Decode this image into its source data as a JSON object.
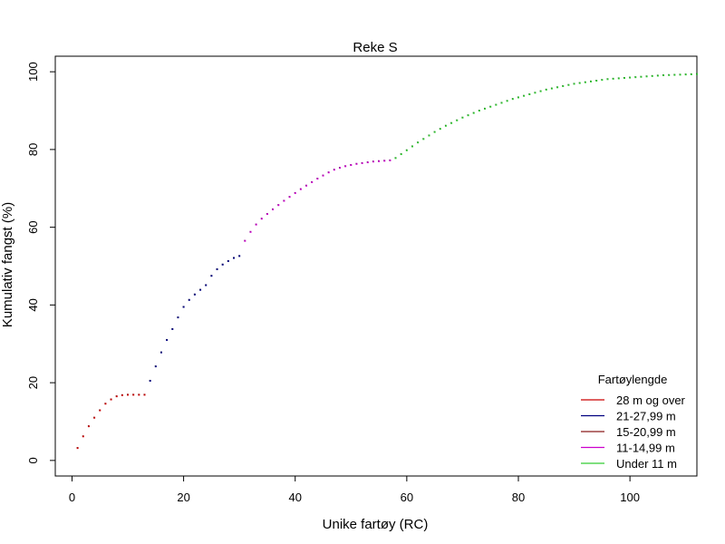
{
  "chart_data": {
    "type": "scatter",
    "title": "Reke S",
    "xlabel": "Unike fartøy (RC)",
    "ylabel": "Kumulativ fangst (%)",
    "xlim": [
      -3,
      112
    ],
    "ylim": [
      -4,
      104
    ],
    "x_ticks": [
      0,
      20,
      40,
      60,
      80,
      100
    ],
    "y_ticks": [
      0,
      20,
      40,
      60,
      80,
      100
    ],
    "x_tick_labels": [
      "0",
      "20",
      "40",
      "60",
      "80",
      "100"
    ],
    "y_tick_labels": [
      "0",
      "20",
      "40",
      "60",
      "80",
      "100"
    ],
    "grid": false,
    "legend": {
      "title": "Fartøylengde",
      "position": "bottom-right",
      "entries": [
        {
          "label": "28 m og over",
          "color": "#cc0000"
        },
        {
          "label": "21-27,99 m",
          "color": "#000080"
        },
        {
          "label": "15-20,99 m",
          "color": "#8b1a1a"
        },
        {
          "label": "11-14,99 m",
          "color": "#cc00cc"
        },
        {
          "label": "Under 11 m",
          "color": "#33cc33"
        }
      ]
    },
    "series": [
      {
        "name": "28 m og over",
        "color": "#cc0000",
        "x": [
          1,
          2,
          3,
          4,
          5,
          6,
          7,
          8,
          9,
          10,
          11,
          12,
          13
        ],
        "y": [
          3.2,
          6.2,
          8.8,
          11.0,
          12.9,
          14.6,
          15.7,
          16.5,
          16.8,
          16.9,
          16.9,
          16.9,
          16.9
        ]
      },
      {
        "name": "21-27,99 m",
        "color": "#000080",
        "x": [
          14,
          15,
          16,
          17,
          18,
          19,
          20,
          21,
          22,
          23,
          24,
          25,
          26,
          27,
          28,
          29,
          30
        ],
        "y": [
          20.5,
          24.2,
          27.8,
          31.0,
          33.8,
          36.8,
          39.5,
          41.3,
          42.7,
          43.9,
          45.1,
          47.5,
          49.2,
          50.4,
          51.3,
          52.1,
          52.6
        ]
      },
      {
        "name": "11-14,99 m",
        "color": "#cc00cc",
        "x": [
          31,
          32,
          33,
          34,
          35,
          36,
          37,
          38,
          39,
          40,
          41,
          42,
          43,
          44,
          45,
          46,
          47,
          48,
          49,
          50,
          51,
          52,
          53,
          54,
          55,
          56,
          57
        ],
        "y": [
          56.5,
          58.8,
          60.7,
          62.2,
          63.4,
          64.6,
          65.7,
          66.8,
          67.8,
          68.8,
          69.8,
          70.7,
          71.6,
          72.5,
          73.3,
          74.1,
          74.8,
          75.3,
          75.7,
          76.0,
          76.3,
          76.5,
          76.7,
          76.9,
          77.0,
          77.1,
          77.2
        ]
      },
      {
        "name": "Under 11 m",
        "color": "#33cc33",
        "x": [
          58,
          59,
          60,
          61,
          62,
          63,
          64,
          65,
          66,
          67,
          68,
          69,
          70,
          71,
          72,
          73,
          74,
          75,
          76,
          77,
          78,
          79,
          80,
          81,
          82,
          83,
          84,
          85,
          86,
          87,
          88,
          89,
          90,
          91,
          92,
          93,
          94,
          95,
          96,
          97,
          98,
          99,
          100,
          101,
          102,
          103,
          104,
          105,
          106,
          107,
          108,
          109,
          110,
          111,
          112
        ],
        "y": [
          77.8,
          78.8,
          79.8,
          80.8,
          81.8,
          82.7,
          83.6,
          84.5,
          85.3,
          86.1,
          86.8,
          87.5,
          88.2,
          88.8,
          89.4,
          90.0,
          90.5,
          91.0,
          91.5,
          92.0,
          92.5,
          93.0,
          93.4,
          93.8,
          94.2,
          94.6,
          95.0,
          95.4,
          95.7,
          96.0,
          96.3,
          96.6,
          96.9,
          97.1,
          97.3,
          97.5,
          97.7,
          97.9,
          98.1,
          98.2,
          98.3,
          98.4,
          98.5,
          98.6,
          98.7,
          98.8,
          98.9,
          99.0,
          99.1,
          99.15,
          99.2,
          99.25,
          99.3,
          99.35,
          99.4
        ]
      }
    ]
  }
}
